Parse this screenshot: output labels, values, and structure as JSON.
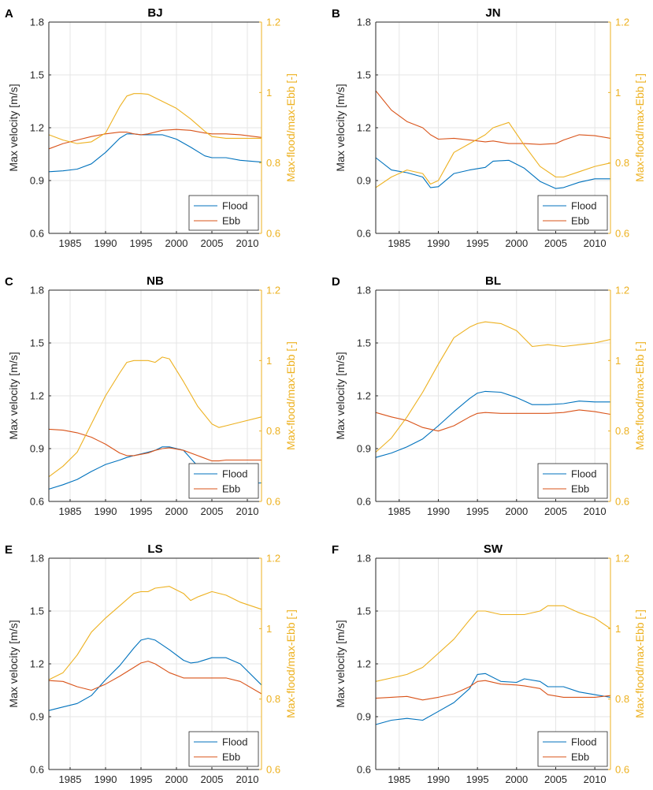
{
  "figure": {
    "legend_flood": "Flood",
    "legend_ebb": "Ebb",
    "colors": {
      "flood": "#0072BD",
      "ebb": "#D95319",
      "ratio": "#EDB120",
      "axis": "#262626",
      "grid": "#e6e6e6"
    }
  },
  "chart_data": [
    {
      "type": "line",
      "panel_label": "A",
      "title": "BJ",
      "xlabel": "",
      "ylabel": "Max velocity [m/s]",
      "y2label": "Max-flood/max-Ebb [-]",
      "xlim": [
        1982,
        2012
      ],
      "ylim": [
        0.6,
        1.8
      ],
      "y2lim": [
        0.6,
        1.2
      ],
      "x_ticks": [
        1985,
        1990,
        1995,
        2000,
        2005,
        2010
      ],
      "x_tick_labels": [
        "1985",
        "1990",
        "1995",
        "2000",
        "2005",
        "2010"
      ],
      "y_ticks": [
        0.6,
        0.9,
        1.2,
        1.5,
        1.8
      ],
      "y_tick_labels": [
        "0.6",
        "0.9",
        "1.2",
        "1.5",
        "1.8"
      ],
      "y2_ticks": [
        0.6,
        0.8,
        1.0,
        1.2
      ],
      "y2_tick_labels": [
        "0.6",
        "0.8",
        "1",
        "1.2"
      ],
      "grid": true,
      "legend_position": "bottom-right",
      "x": [
        1982,
        1984,
        1986,
        1988,
        1990,
        1992,
        1993,
        1994,
        1995,
        1996,
        1998,
        2000,
        2002,
        2004,
        2005,
        2007,
        2009,
        2012
      ],
      "series": [
        {
          "name": "Flood",
          "axis": "left",
          "values": [
            0.95,
            0.955,
            0.965,
            0.995,
            1.06,
            1.14,
            1.165,
            1.165,
            1.16,
            1.16,
            1.16,
            1.135,
            1.09,
            1.04,
            1.03,
            1.03,
            1.015,
            1.005
          ]
        },
        {
          "name": "Ebb",
          "axis": "left",
          "values": [
            1.08,
            1.11,
            1.13,
            1.15,
            1.165,
            1.175,
            1.175,
            1.165,
            1.16,
            1.165,
            1.185,
            1.19,
            1.185,
            1.17,
            1.165,
            1.165,
            1.16,
            1.145
          ]
        },
        {
          "name": "Max-flood/max-Ebb",
          "axis": "right",
          "values": [
            0.88,
            0.865,
            0.855,
            0.86,
            0.885,
            0.96,
            0.99,
            0.997,
            0.997,
            0.995,
            0.975,
            0.955,
            0.925,
            0.89,
            0.875,
            0.87,
            0.87,
            0.87
          ]
        }
      ]
    },
    {
      "type": "line",
      "panel_label": "B",
      "title": "JN",
      "xlabel": "",
      "ylabel": "Max velocity [m/s]",
      "y2label": "Max-flood/max-Ebb [-]",
      "xlim": [
        1982,
        2012
      ],
      "ylim": [
        0.6,
        1.8
      ],
      "y2lim": [
        0.6,
        1.2
      ],
      "x_ticks": [
        1985,
        1990,
        1995,
        2000,
        2005,
        2010
      ],
      "x_tick_labels": [
        "1985",
        "1990",
        "1995",
        "2000",
        "2005",
        "2010"
      ],
      "y_ticks": [
        0.6,
        0.9,
        1.2,
        1.5,
        1.8
      ],
      "y_tick_labels": [
        "0.6",
        "0.9",
        "1.2",
        "1.5",
        "1.8"
      ],
      "y2_ticks": [
        0.6,
        0.8,
        1.0,
        1.2
      ],
      "y2_tick_labels": [
        "0.6",
        "0.8",
        "1",
        "1.2"
      ],
      "grid": true,
      "legend_position": "bottom-right",
      "x": [
        1982,
        1984,
        1986,
        1988,
        1989,
        1990,
        1992,
        1994,
        1996,
        1997,
        1999,
        2001,
        2003,
        2005,
        2006,
        2008,
        2010,
        2012
      ],
      "series": [
        {
          "name": "Flood",
          "axis": "left",
          "values": [
            1.03,
            0.96,
            0.945,
            0.92,
            0.86,
            0.865,
            0.94,
            0.96,
            0.975,
            1.01,
            1.015,
            0.97,
            0.895,
            0.855,
            0.86,
            0.89,
            0.91,
            0.91
          ]
        },
        {
          "name": "Ebb",
          "axis": "left",
          "values": [
            1.41,
            1.3,
            1.235,
            1.2,
            1.16,
            1.135,
            1.14,
            1.13,
            1.12,
            1.125,
            1.11,
            1.11,
            1.105,
            1.11,
            1.13,
            1.16,
            1.155,
            1.14
          ]
        },
        {
          "name": "Max-flood/max-Ebb",
          "axis": "right",
          "values": [
            0.73,
            0.76,
            0.78,
            0.77,
            0.74,
            0.75,
            0.83,
            0.855,
            0.88,
            0.9,
            0.915,
            0.85,
            0.79,
            0.76,
            0.76,
            0.775,
            0.79,
            0.8
          ]
        }
      ]
    },
    {
      "type": "line",
      "panel_label": "C",
      "title": "NB",
      "xlabel": "",
      "ylabel": "Max velocity [m/s]",
      "y2label": "Max-flood/max-Ebb [-]",
      "xlim": [
        1982,
        2012
      ],
      "ylim": [
        0.6,
        1.8
      ],
      "y2lim": [
        0.6,
        1.2
      ],
      "x_ticks": [
        1985,
        1990,
        1995,
        2000,
        2005,
        2010
      ],
      "x_tick_labels": [
        "1985",
        "1990",
        "1995",
        "2000",
        "2005",
        "2010"
      ],
      "y_ticks": [
        0.6,
        0.9,
        1.2,
        1.5,
        1.8
      ],
      "y_tick_labels": [
        "0.6",
        "0.9",
        "1.2",
        "1.5",
        "1.8"
      ],
      "y2_ticks": [
        0.6,
        0.8,
        1.0,
        1.2
      ],
      "y2_tick_labels": [
        "0.6",
        "0.8",
        "1",
        "1.2"
      ],
      "grid": true,
      "legend_position": "bottom-right",
      "x": [
        1982,
        1984,
        1986,
        1988,
        1990,
        1992,
        1993,
        1994,
        1996,
        1997,
        1998,
        1999,
        2001,
        2003,
        2005,
        2006,
        2007,
        2009,
        2012
      ],
      "series": [
        {
          "name": "Flood",
          "axis": "left",
          "values": [
            0.67,
            0.695,
            0.725,
            0.77,
            0.81,
            0.835,
            0.85,
            0.86,
            0.88,
            0.89,
            0.91,
            0.91,
            0.89,
            0.8,
            0.74,
            0.72,
            0.71,
            0.7,
            0.705
          ]
        },
        {
          "name": "Ebb",
          "axis": "left",
          "values": [
            1.01,
            1.005,
            0.99,
            0.965,
            0.925,
            0.875,
            0.86,
            0.86,
            0.875,
            0.89,
            0.9,
            0.905,
            0.89,
            0.86,
            0.83,
            0.83,
            0.835,
            0.835,
            0.835
          ]
        },
        {
          "name": "Max-flood/max-Ebb",
          "axis": "right",
          "values": [
            0.67,
            0.7,
            0.74,
            0.82,
            0.9,
            0.965,
            0.995,
            1.0,
            1.0,
            0.995,
            1.01,
            1.005,
            0.94,
            0.87,
            0.82,
            0.81,
            0.815,
            0.825,
            0.84
          ]
        }
      ]
    },
    {
      "type": "line",
      "panel_label": "D",
      "title": "BL",
      "xlabel": "",
      "ylabel": "Max velocity [m/s]",
      "y2label": "Max-flood/max-Ebb [-]",
      "xlim": [
        1982,
        2012
      ],
      "ylim": [
        0.6,
        1.8
      ],
      "y2lim": [
        0.6,
        1.2
      ],
      "x_ticks": [
        1985,
        1990,
        1995,
        2000,
        2005,
        2010
      ],
      "x_tick_labels": [
        "1985",
        "1990",
        "1995",
        "2000",
        "2005",
        "2010"
      ],
      "y_ticks": [
        0.6,
        0.9,
        1.2,
        1.5,
        1.8
      ],
      "y_tick_labels": [
        "0.6",
        "0.9",
        "1.2",
        "1.5",
        "1.8"
      ],
      "y2_ticks": [
        0.6,
        0.8,
        1.0,
        1.2
      ],
      "y2_tick_labels": [
        "0.6",
        "0.8",
        "1",
        "1.2"
      ],
      "grid": true,
      "legend_position": "bottom-right",
      "x": [
        1982,
        1984,
        1986,
        1988,
        1990,
        1992,
        1994,
        1995,
        1996,
        1998,
        2000,
        2002,
        2004,
        2006,
        2008,
        2010,
        2012
      ],
      "series": [
        {
          "name": "Flood",
          "axis": "left",
          "values": [
            0.85,
            0.875,
            0.91,
            0.955,
            1.03,
            1.11,
            1.185,
            1.215,
            1.225,
            1.22,
            1.19,
            1.15,
            1.15,
            1.155,
            1.17,
            1.165,
            1.165
          ]
        },
        {
          "name": "Ebb",
          "axis": "left",
          "values": [
            1.105,
            1.08,
            1.06,
            1.02,
            1.0,
            1.03,
            1.08,
            1.1,
            1.105,
            1.1,
            1.1,
            1.1,
            1.1,
            1.105,
            1.12,
            1.11,
            1.095
          ]
        },
        {
          "name": "Max-flood/max-Ebb",
          "axis": "right",
          "values": [
            0.74,
            0.78,
            0.84,
            0.91,
            0.99,
            1.065,
            1.095,
            1.105,
            1.11,
            1.105,
            1.085,
            1.04,
            1.045,
            1.04,
            1.045,
            1.05,
            1.06
          ]
        }
      ]
    },
    {
      "type": "line",
      "panel_label": "E",
      "title": "LS",
      "xlabel": "",
      "ylabel": "Max velocity [m/s]",
      "y2label": "Max-flood/max-Ebb [-]",
      "xlim": [
        1982,
        2012
      ],
      "ylim": [
        0.6,
        1.8
      ],
      "y2lim": [
        0.6,
        1.2
      ],
      "x_ticks": [
        1985,
        1990,
        1995,
        2000,
        2005,
        2010
      ],
      "x_tick_labels": [
        "1985",
        "1990",
        "1995",
        "2000",
        "2005",
        "2010"
      ],
      "y_ticks": [
        0.6,
        0.9,
        1.2,
        1.5,
        1.8
      ],
      "y_tick_labels": [
        "0.6",
        "0.9",
        "1.2",
        "1.5",
        "1.8"
      ],
      "y2_ticks": [
        0.6,
        0.8,
        1.0,
        1.2
      ],
      "y2_tick_labels": [
        "0.6",
        "0.8",
        "1",
        "1.2"
      ],
      "grid": true,
      "legend_position": "bottom-right",
      "x": [
        1982,
        1984,
        1986,
        1988,
        1990,
        1992,
        1994,
        1995,
        1996,
        1997,
        1999,
        2001,
        2002,
        2003,
        2005,
        2007,
        2009,
        2012
      ],
      "series": [
        {
          "name": "Flood",
          "axis": "left",
          "values": [
            0.935,
            0.955,
            0.975,
            1.02,
            1.11,
            1.19,
            1.29,
            1.335,
            1.345,
            1.335,
            1.28,
            1.22,
            1.205,
            1.21,
            1.235,
            1.235,
            1.2,
            1.08
          ]
        },
        {
          "name": "Ebb",
          "axis": "left",
          "values": [
            1.105,
            1.1,
            1.07,
            1.05,
            1.085,
            1.13,
            1.18,
            1.205,
            1.215,
            1.2,
            1.15,
            1.12,
            1.12,
            1.12,
            1.12,
            1.12,
            1.1,
            1.03
          ]
        },
        {
          "name": "Max-flood/max-Ebb",
          "axis": "right",
          "values": [
            0.855,
            0.875,
            0.925,
            0.99,
            1.03,
            1.065,
            1.1,
            1.105,
            1.105,
            1.115,
            1.12,
            1.1,
            1.08,
            1.09,
            1.105,
            1.095,
            1.075,
            1.055
          ]
        }
      ]
    },
    {
      "type": "line",
      "panel_label": "F",
      "title": "SW",
      "xlabel": "",
      "ylabel": "Max velocity [m/s]",
      "y2label": "Max-flood/max-Ebb [-]",
      "xlim": [
        1982,
        2012
      ],
      "ylim": [
        0.6,
        1.8
      ],
      "y2lim": [
        0.6,
        1.2
      ],
      "x_ticks": [
        1985,
        1990,
        1995,
        2000,
        2005,
        2010
      ],
      "x_tick_labels": [
        "1985",
        "1990",
        "1995",
        "2000",
        "2005",
        "2010"
      ],
      "y_ticks": [
        0.6,
        0.9,
        1.2,
        1.5,
        1.8
      ],
      "y_tick_labels": [
        "0.6",
        "0.9",
        "1.2",
        "1.5",
        "1.8"
      ],
      "y2_ticks": [
        0.6,
        0.8,
        1.0,
        1.2
      ],
      "y2_tick_labels": [
        "0.6",
        "0.8",
        "1",
        "1.2"
      ],
      "grid": true,
      "legend_position": "bottom-right",
      "x": [
        1982,
        1984,
        1986,
        1988,
        1990,
        1992,
        1994,
        1995,
        1996,
        1998,
        2000,
        2001,
        2003,
        2004,
        2006,
        2008,
        2010,
        2012
      ],
      "series": [
        {
          "name": "Flood",
          "axis": "left",
          "values": [
            0.855,
            0.88,
            0.89,
            0.88,
            0.93,
            0.98,
            1.06,
            1.14,
            1.145,
            1.1,
            1.095,
            1.115,
            1.1,
            1.07,
            1.07,
            1.04,
            1.025,
            1.01
          ]
        },
        {
          "name": "Ebb",
          "axis": "left",
          "values": [
            1.005,
            1.01,
            1.015,
            0.995,
            1.01,
            1.03,
            1.07,
            1.1,
            1.105,
            1.085,
            1.08,
            1.075,
            1.06,
            1.025,
            1.01,
            1.01,
            1.01,
            1.02
          ]
        },
        {
          "name": "Max-flood/max-Ebb",
          "axis": "right",
          "values": [
            0.85,
            0.86,
            0.87,
            0.89,
            0.93,
            0.97,
            1.025,
            1.05,
            1.05,
            1.04,
            1.04,
            1.04,
            1.05,
            1.065,
            1.065,
            1.045,
            1.03,
            1.0
          ]
        }
      ]
    }
  ]
}
